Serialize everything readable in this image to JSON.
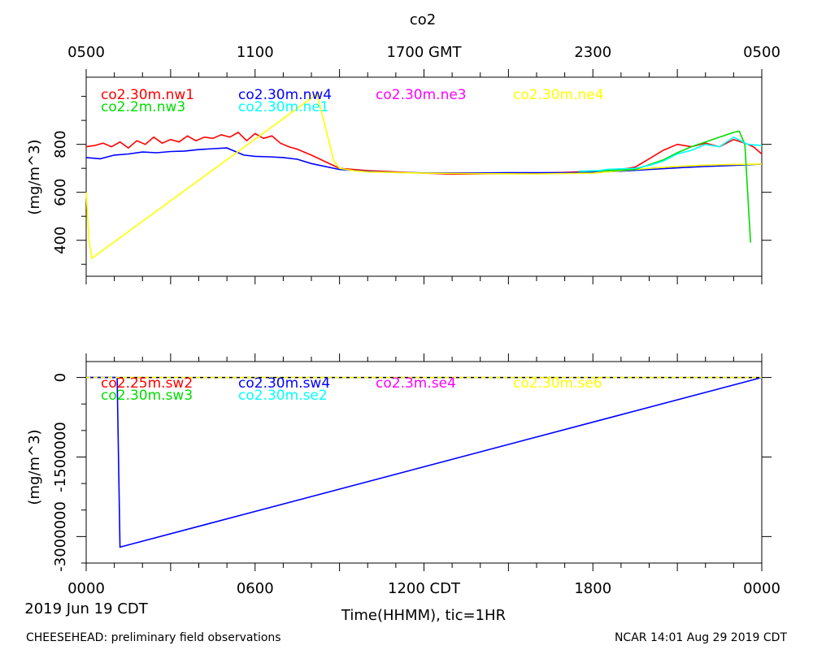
{
  "chart_data": {
    "type": "line",
    "title": "co2",
    "top_axis_ticks": [
      "0500",
      "1100",
      "1700 GMT",
      "2300",
      "0500"
    ],
    "bottom_axis_ticks": [
      "0000",
      "0600",
      "1200 CDT",
      "1800",
      "0000"
    ],
    "x_unit_hours_cdt": [
      0,
      24
    ],
    "date_label": "2019 Jun 19 CDT",
    "xlabel": "Time(HHMM), tic=1HR",
    "footer_left": "CHEESEHEAD: preliminary field observations",
    "footer_right": "NCAR 14:01 Aug 29 2019 CDT",
    "panels": [
      {
        "ylabel": "(mg/m^3)",
        "ylim": [
          250,
          1080
        ],
        "yticks": [
          400,
          600,
          800
        ],
        "ytick_labels": [
          "400",
          "600",
          "800"
        ],
        "legend": [
          {
            "name": "co2.30m.nw1",
            "color": "#ff0000"
          },
          {
            "name": "co2.30m.nw4",
            "color": "#0000ff"
          },
          {
            "name": "co2.30m.ne3",
            "color": "#ff00ff"
          },
          {
            "name": "co2.30m.ne4",
            "color": "#ffff00"
          },
          {
            "name": "co2.2m.nw3",
            "color": "#00dd00"
          },
          {
            "name": "co2.30m.ne1",
            "color": "#00ffff"
          }
        ],
        "series": [
          {
            "name": "co2.30m.nw1",
            "color": "#ff0000",
            "x": [
              0,
              0.3,
              0.6,
              0.9,
              1.2,
              1.5,
              1.8,
              2.1,
              2.4,
              2.7,
              3.0,
              3.3,
              3.6,
              3.9,
              4.2,
              4.5,
              4.8,
              5.1,
              5.4,
              5.7,
              6.0,
              6.3,
              6.6,
              6.9,
              7.2,
              7.5,
              8.0,
              9.0,
              10.0,
              11.0,
              12.0,
              13.0,
              14.0,
              15.0,
              16.0,
              17.0,
              18.0,
              19.0,
              19.5,
              20.0,
              20.5,
              21.0,
              21.5,
              22.0,
              22.5,
              23.0,
              23.4,
              23.7,
              24.0
            ],
            "y": [
              790,
              795,
              805,
              790,
              810,
              785,
              815,
              800,
              830,
              805,
              820,
              810,
              835,
              815,
              830,
              825,
              840,
              830,
              850,
              815,
              845,
              825,
              835,
              805,
              790,
              780,
              755,
              700,
              690,
              685,
              680,
              676,
              677,
              678,
              680,
              683,
              687,
              695,
              705,
              740,
              775,
              800,
              790,
              805,
              790,
              820,
              805,
              790,
              760
            ]
          },
          {
            "name": "co2.30m.nw4",
            "color": "#0000ff",
            "x": [
              0,
              0.5,
              1.0,
              1.5,
              2.0,
              2.5,
              3.0,
              3.5,
              4.0,
              4.5,
              5.0,
              5.3,
              5.6,
              6.0,
              6.5,
              7.0,
              7.5,
              8.0,
              9.0,
              10.0,
              11.0,
              12.0,
              13.0,
              14.0,
              15.0,
              16.0,
              17.0,
              18.0,
              19.0,
              20.0,
              21.0,
              22.0,
              23.0,
              24.0
            ],
            "y": [
              745,
              740,
              755,
              760,
              768,
              765,
              770,
              772,
              778,
              782,
              785,
              770,
              755,
              750,
              748,
              745,
              738,
              720,
              695,
              687,
              683,
              681,
              681,
              681,
              682,
              682,
              682,
              683,
              688,
              695,
              702,
              708,
              712,
              718
            ]
          },
          {
            "name": "co2.30m.ne4",
            "color": "#ffff00",
            "x": [
              0.0,
              0.1,
              0.2,
              8.2,
              8.5,
              8.8,
              9.0,
              9.5,
              10.0,
              12.0,
              14.0,
              16.0,
              18.0,
              19.0,
              20.0,
              21.0,
              22.0,
              23.0,
              24.0
            ],
            "y": [
              600,
              400,
              325,
              1010,
              870,
              730,
              700,
              690,
              685,
              680,
              678,
              677,
              680,
              690,
              700,
              708,
              713,
              716,
              718
            ]
          },
          {
            "name": "co2.2m.nw3",
            "color": "#00dd00",
            "x": [
              17.5,
              18.5,
              19.5,
              20.0,
              20.5,
              21.0,
              21.5,
              22.0,
              22.5,
              23.0,
              23.2,
              23.4,
              23.6
            ],
            "y": [
              687,
              690,
              695,
              715,
              735,
              765,
              790,
              810,
              830,
              850,
              855,
              800,
              390
            ]
          },
          {
            "name": "co2.30m.ne1",
            "color": "#00ffff",
            "x": [
              17.5,
              18.2,
              18.5,
              19.0,
              19.5,
              20.0,
              20.5,
              21.0,
              21.5,
              22.0,
              22.5,
              23.0,
              23.5,
              24.0
            ],
            "y": [
              688,
              690,
              695,
              698,
              700,
              712,
              730,
              760,
              775,
              800,
              790,
              830,
              800,
              795
            ]
          }
        ]
      },
      {
        "ylabel": "(mg/m^3)",
        "ylim": [
          -3500000,
          300000
        ],
        "yticks": [
          0,
          -1500000,
          -3000000
        ],
        "ytick_labels": [
          "0",
          "-1500000",
          "-3000000"
        ],
        "legend": [
          {
            "name": "co2.25m.sw2",
            "color": "#ff0000"
          },
          {
            "name": "co2.30m.sw4",
            "color": "#0000ff"
          },
          {
            "name": "co2.3m.se4",
            "color": "#ff00ff"
          },
          {
            "name": "co2.30m.se6",
            "color": "#ffff00"
          },
          {
            "name": "co2.30m.sw3",
            "color": "#00dd00"
          },
          {
            "name": "co2.30m.se2",
            "color": "#00ffff"
          }
        ],
        "series": [
          {
            "name": "co2.30m.sw4",
            "color": "#0000ff",
            "x": [
              0,
              1.1,
              1.2,
              24.0
            ],
            "y": [
              0,
              0,
              -3200000,
              0
            ]
          },
          {
            "name": "co2.30m.se6",
            "color": "#ffff00",
            "x": [
              0,
              24.0
            ],
            "y": [
              0,
              0
            ]
          }
        ]
      }
    ]
  }
}
